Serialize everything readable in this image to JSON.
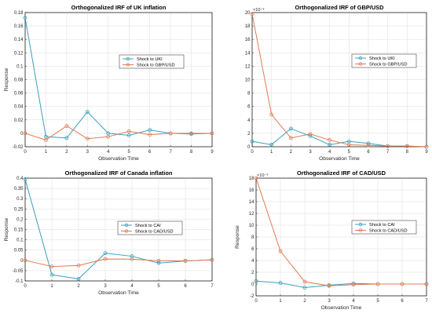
{
  "chart_data": [
    {
      "type": "line",
      "title": "Orthogonalized IRF of UK inflation",
      "xlabel": "Observation Time",
      "ylabel": "Response",
      "xlim": [
        0,
        9
      ],
      "ylim": [
        -0.02,
        0.18
      ],
      "xticks": [
        0,
        1,
        2,
        3,
        4,
        5,
        6,
        7,
        8,
        9
      ],
      "yticks": [
        -0.02,
        0,
        0.02,
        0.04,
        0.06,
        0.08,
        0.1,
        0.12,
        0.14,
        0.16,
        0.18
      ],
      "ytick_labels": [
        "-0.02",
        "0",
        "0.02",
        "0.04",
        "0.06",
        "0.08",
        "0.1",
        "0.12",
        "0.14",
        "0.16",
        "0.18"
      ],
      "exponent": "",
      "grid": true,
      "legend_position": "center-right",
      "x": [
        0,
        1,
        2,
        3,
        4,
        5,
        6,
        7,
        8,
        9
      ],
      "series": [
        {
          "name": "Shock to UKI",
          "color": "#3a9fbf",
          "values": [
            0.172,
            -0.005,
            -0.007,
            0.032,
            0.0,
            -0.003,
            0.005,
            0.0,
            -0.001,
            0.0
          ]
        },
        {
          "name": "Shock to GBP/USD",
          "color": "#e07b52",
          "values": [
            0.0,
            -0.01,
            0.011,
            -0.008,
            -0.005,
            0.003,
            -0.002,
            0.0,
            0.0,
            0.0
          ]
        }
      ]
    },
    {
      "type": "line",
      "title": "Orthogonalized IRF of  GBP/USD",
      "xlabel": "Observation Time",
      "ylabel": "",
      "xlim": [
        0,
        9
      ],
      "ylim": [
        0,
        20
      ],
      "xticks": [
        0,
        1,
        2,
        3,
        4,
        5,
        6,
        7,
        8,
        9
      ],
      "yticks": [
        0,
        2,
        4,
        6,
        8,
        10,
        12,
        14,
        16,
        18,
        20
      ],
      "ytick_labels": [
        "0",
        "2",
        "4",
        "6",
        "8",
        "10",
        "12",
        "14",
        "16",
        "18",
        "20"
      ],
      "exponent": "×10⁻³",
      "grid": true,
      "legend_position": "top-right",
      "x": [
        0,
        1,
        2,
        3,
        4,
        5,
        6,
        7,
        8,
        9
      ],
      "series": [
        {
          "name": "Shock to UKI",
          "color": "#3a9fbf",
          "values": [
            0.8,
            0.3,
            2.7,
            1.6,
            0.3,
            0.8,
            0.5,
            0.1,
            0.1,
            0.0
          ]
        },
        {
          "name": "Shock to GBP/USD",
          "color": "#e07b52",
          "values": [
            19.8,
            4.8,
            1.3,
            1.9,
            1.0,
            0.3,
            0.2,
            0.1,
            0.1,
            0.0
          ]
        }
      ]
    },
    {
      "type": "line",
      "title": "Orthogonalized IRF of Canada inflation",
      "xlabel": "Observation Time",
      "ylabel": "Response",
      "xlim": [
        0,
        7
      ],
      "ylim": [
        -0.1,
        0.4
      ],
      "xticks": [
        0,
        1,
        2,
        3,
        4,
        5,
        6,
        7
      ],
      "yticks": [
        -0.1,
        -0.05,
        0,
        0.05,
        0.1,
        0.15,
        0.2,
        0.25,
        0.3,
        0.35,
        0.4
      ],
      "ytick_labels": [
        "-0.1",
        "-0.05",
        "0",
        "0.05",
        "0.1",
        "0.15",
        "0.2",
        "0.25",
        "0.3",
        "0.35",
        "0.4"
      ],
      "exponent": "",
      "grid": true,
      "legend_position": "top-right",
      "x": [
        0,
        1,
        2,
        3,
        4,
        5,
        6,
        7
      ],
      "series": [
        {
          "name": "Shock to CAI",
          "color": "#3a9fbf",
          "values": [
            0.395,
            -0.07,
            -0.09,
            0.035,
            0.02,
            -0.013,
            -0.003,
            0.003
          ]
        },
        {
          "name": "Shock to CAD/USD",
          "color": "#e07b52",
          "values": [
            0.0,
            -0.03,
            -0.025,
            0.007,
            0.006,
            -0.002,
            -0.002,
            0.002
          ]
        }
      ]
    },
    {
      "type": "line",
      "title": "Orthogonalized IRF of  CAD/USD",
      "xlabel": "Observation Time",
      "ylabel": "Response",
      "xlim": [
        0,
        7
      ],
      "ylim": [
        -2,
        18
      ],
      "xticks": [
        0,
        1,
        2,
        3,
        4,
        5,
        6,
        7
      ],
      "yticks": [
        -2,
        0,
        2,
        4,
        6,
        8,
        10,
        12,
        14,
        16,
        18
      ],
      "ytick_labels": [
        "-2",
        "0",
        "2",
        "4",
        "6",
        "8",
        "10",
        "12",
        "14",
        "16",
        "18"
      ],
      "exponent": "×10⁻³",
      "grid": true,
      "legend_position": "top-right",
      "x": [
        0,
        1,
        2,
        3,
        4,
        5,
        6,
        7
      ],
      "series": [
        {
          "name": "Shock to CAI",
          "color": "#3a9fbf",
          "values": [
            0.5,
            0.2,
            -0.6,
            -0.2,
            0.1,
            0.0,
            0.0,
            0.0
          ]
        },
        {
          "name": "Shock to CAD/USD",
          "color": "#e07b52",
          "values": [
            18.0,
            5.6,
            0.4,
            -0.3,
            -0.1,
            0.0,
            0.0,
            0.0
          ]
        }
      ]
    }
  ]
}
